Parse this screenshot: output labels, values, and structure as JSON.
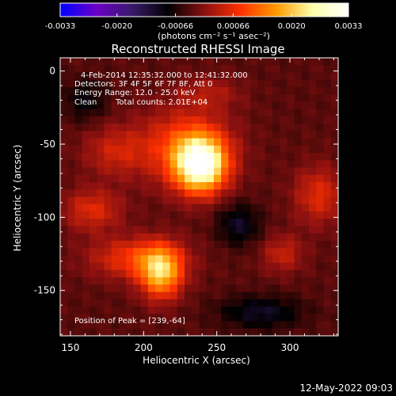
{
  "chart_data": {
    "type": "heatmap",
    "title": "Reconstructed RHESSI Image",
    "xlabel": "Heliocentric X (arcsec)",
    "ylabel": "Heliocentric Y (arcsec)",
    "xlim": [
      143,
      333
    ],
    "ylim": [
      -181,
      9
    ],
    "x_ticks": [
      150,
      200,
      250,
      300
    ],
    "y_ticks": [
      0,
      -50,
      -100,
      -150
    ],
    "colorbar": {
      "range": [
        -0.0033,
        0.0033
      ],
      "tick_values": [
        -0.0033,
        -0.002,
        -0.00066,
        0.00066,
        0.002,
        0.0033
      ],
      "tick_labels": [
        "-0.0033",
        "-0.0020",
        "-0.00066",
        "0.00066",
        "0.0020",
        "0.0033"
      ],
      "units_label": "(photons cm⁻² s⁻¹ asec⁻²)",
      "colors": [
        "#0000ff",
        "#6a00c8",
        "#3a1a6a",
        "#000000",
        "#8a1010",
        "#ff3000",
        "#ff9a00",
        "#ffffaa",
        "#ffffff"
      ]
    },
    "background_value": -0.0003,
    "sources": [
      {
        "x": 239,
        "y": -64,
        "peak": 0.0033,
        "sx": 12,
        "sy": 13
      },
      {
        "x": 228,
        "y": -52,
        "peak": 0.0012,
        "sx": 22,
        "sy": 18
      },
      {
        "x": 212,
        "y": -138,
        "peak": 0.0022,
        "sx": 10,
        "sy": 12
      },
      {
        "x": 195,
        "y": -128,
        "peak": 0.0011,
        "sx": 22,
        "sy": 10
      },
      {
        "x": 165,
        "y": -95,
        "peak": 0.0009,
        "sx": 14,
        "sy": 10
      },
      {
        "x": 180,
        "y": -55,
        "peak": 0.0007,
        "sx": 15,
        "sy": 12
      },
      {
        "x": 320,
        "y": -85,
        "peak": 0.0009,
        "sx": 12,
        "sy": 14
      },
      {
        "x": 295,
        "y": -125,
        "peak": 0.0007,
        "sx": 10,
        "sy": 9
      },
      {
        "x": 245,
        "y": -15,
        "peak": 0.0005,
        "sx": 15,
        "sy": 8
      },
      {
        "x": 265,
        "y": -105,
        "peak": -0.0008,
        "sx": 10,
        "sy": 10
      },
      {
        "x": 280,
        "y": -165,
        "peak": -0.0008,
        "sx": 20,
        "sy": 8
      },
      {
        "x": 160,
        "y": -20,
        "peak": -0.0006,
        "sx": 10,
        "sy": 10
      }
    ],
    "annotations": {
      "time_range": "4-Feb-2014 12:35:32.000 to 12:41:32.000",
      "detectors": "Detectors: 3F 4F 5F 6F 7F 8F, Att 0",
      "energy": "Energy Range: 12.0 - 25.0 keV",
      "method": "Clean",
      "counts": "Total counts: 2.01E+04",
      "peak": "Position of Peak = [239,-64]"
    },
    "footer_date": "12-May-2022 09:03"
  }
}
